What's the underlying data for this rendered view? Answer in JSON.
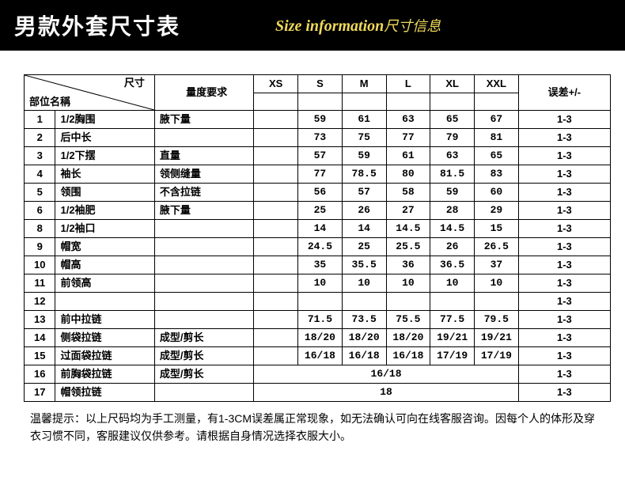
{
  "header": {
    "title": "男款外套尺寸表",
    "sub_en": "Size information",
    "sub_cn": "尺寸信息"
  },
  "table": {
    "corner_top": "尺寸",
    "corner_bottom": "部位名稱",
    "req_header": "量度要求",
    "tol_header": "误差+/-",
    "sizes": [
      "XS",
      "S",
      "M",
      "L",
      "XL",
      "XXL"
    ],
    "rows": [
      {
        "n": "1",
        "part": "1/2胸围",
        "req": "腋下量",
        "vals": [
          "",
          "59",
          "61",
          "63",
          "65",
          "67"
        ],
        "tol": "1-3"
      },
      {
        "n": "2",
        "part": "后中长",
        "req": "",
        "vals": [
          "",
          "73",
          "75",
          "77",
          "79",
          "81"
        ],
        "tol": "1-3"
      },
      {
        "n": "3",
        "part": "1/2下摆",
        "req": "直量",
        "vals": [
          "",
          "57",
          "59",
          "61",
          "63",
          "65"
        ],
        "tol": "1-3"
      },
      {
        "n": "4",
        "part": "袖长",
        "req": "领侧缝量",
        "vals": [
          "",
          "77",
          "78.5",
          "80",
          "81.5",
          "83"
        ],
        "tol": "1-3"
      },
      {
        "n": "5",
        "part": "领围",
        "req": "不含拉链",
        "vals": [
          "",
          "56",
          "57",
          "58",
          "59",
          "60"
        ],
        "tol": "1-3"
      },
      {
        "n": "6",
        "part": "1/2袖肥",
        "req": "腋下量",
        "vals": [
          "",
          "25",
          "26",
          "27",
          "28",
          "29"
        ],
        "tol": "1-3"
      },
      {
        "n": "8",
        "part": "1/2袖口",
        "req": "",
        "vals": [
          "",
          "14",
          "14",
          "14.5",
          "14.5",
          "15"
        ],
        "tol": "1-3"
      },
      {
        "n": "9",
        "part": "帽宽",
        "req": "",
        "vals": [
          "",
          "24.5",
          "25",
          "25.5",
          "26",
          "26.5"
        ],
        "tol": "1-3"
      },
      {
        "n": "10",
        "part": "帽高",
        "req": "",
        "vals": [
          "",
          "35",
          "35.5",
          "36",
          "36.5",
          "37"
        ],
        "tol": "1-3"
      },
      {
        "n": "11",
        "part": "前领高",
        "req": "",
        "vals": [
          "",
          "10",
          "10",
          "10",
          "10",
          "10"
        ],
        "tol": "1-3"
      },
      {
        "n": "12",
        "part": "",
        "req": "",
        "vals": [
          "",
          "",
          "",
          "",
          "",
          ""
        ],
        "tol": "1-3"
      },
      {
        "n": "13",
        "part": "前中拉链",
        "req": "",
        "vals": [
          "",
          "71.5",
          "73.5",
          "75.5",
          "77.5",
          "79.5"
        ],
        "tol": "1-3"
      },
      {
        "n": "14",
        "part": "侧袋拉链",
        "req": "成型/剪长",
        "vals": [
          "",
          "18/20",
          "18/20",
          "18/20",
          "19/21",
          "19/21"
        ],
        "tol": "1-3"
      },
      {
        "n": "15",
        "part": "过面袋拉链",
        "req": "成型/剪长",
        "vals": [
          "",
          "16/18",
          "16/18",
          "16/18",
          "17/19",
          "17/19"
        ],
        "tol": "1-3"
      },
      {
        "n": "16",
        "part": "前胸袋拉链",
        "req": "成型/剪长",
        "span": "16/18",
        "tol": "1-3"
      },
      {
        "n": "17",
        "part": "帽领拉链",
        "req": "",
        "span": "18",
        "tol": "1-3"
      }
    ]
  },
  "note": "温馨提示：以上尺码均为手工测量，有1-3CM误差属正常现象，如无法确认可向在线客服咨询。因每个人的体形及穿衣习惯不同，客服建议仅供参考。请根据自身情况选择衣服大小。"
}
